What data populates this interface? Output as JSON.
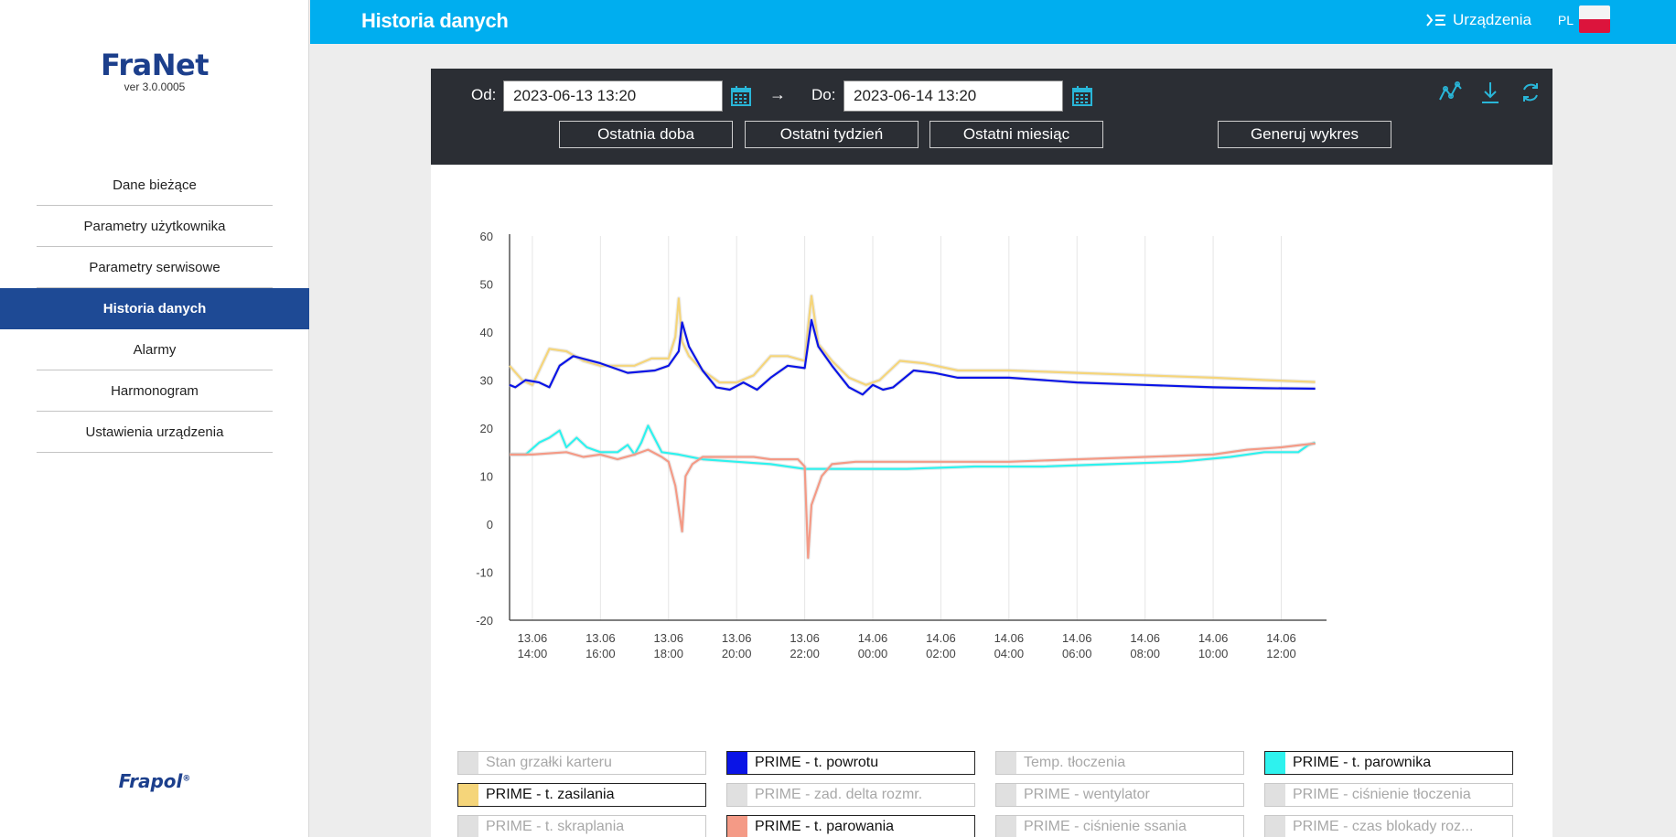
{
  "app": {
    "brand": "FraNet",
    "version": "ver 3.0.0005",
    "footer_logo": "Frapol"
  },
  "sidebar": {
    "items": [
      {
        "label": "Dane bieżące",
        "active": false
      },
      {
        "label": "Parametry użytkownika",
        "active": false
      },
      {
        "label": "Parametry serwisowe",
        "active": false
      },
      {
        "label": "Historia danych",
        "active": true
      },
      {
        "label": "Alarmy",
        "active": false
      },
      {
        "label": "Harmonogram",
        "active": false
      },
      {
        "label": "Ustawienia urządzenia",
        "active": false
      }
    ]
  },
  "header": {
    "title": "Historia danych",
    "devices_label": "Urządzenia",
    "lang": "PL"
  },
  "toolbar": {
    "from_label": "Od:",
    "from_value": "2023-06-13 13:20",
    "arrow": "→",
    "to_label": "Do:",
    "to_value": "2023-06-14 13:20",
    "btn_day": "Ostatnia doba",
    "btn_week": "Ostatni tydzień",
    "btn_month": "Ostatni miesiąc",
    "btn_generate": "Generuj wykres",
    "icons": [
      "chart-line-icon",
      "download-icon",
      "refresh-icon"
    ]
  },
  "colors": {
    "header": "#00aeef",
    "sidebar_active": "#1e4a95",
    "toolbar": "#2b2e34",
    "icon_accent": "#29b6d8"
  },
  "legend": [
    {
      "label": "Stan grzałki karteru",
      "active": false,
      "color": "#e0e0e0"
    },
    {
      "label": "PRIME - t. powrotu",
      "active": true,
      "color": "#0a14e6"
    },
    {
      "label": "Temp. tłoczenia",
      "active": false,
      "color": "#e0e0e0"
    },
    {
      "label": "PRIME - t. parownika",
      "active": true,
      "color": "#2ef2ee"
    },
    {
      "label": "PRIME - t. zasilania",
      "active": true,
      "color": "#f5d57a"
    },
    {
      "label": "PRIME - zad. delta rozmr.",
      "active": false,
      "color": "#e0e0e0"
    },
    {
      "label": "PRIME - wentylator",
      "active": false,
      "color": "#e0e0e0"
    },
    {
      "label": "PRIME - ciśnienie tłoczenia",
      "active": false,
      "color": "#e0e0e0"
    },
    {
      "label": "PRIME - t. skraplania",
      "active": false,
      "color": "#e0e0e0"
    },
    {
      "label": "PRIME - t. parowania",
      "active": true,
      "color": "#f49a86"
    },
    {
      "label": "PRIME - ciśnienie ssania",
      "active": false,
      "color": "#e0e0e0"
    },
    {
      "label": "PRIME - czas blokady roz...",
      "active": false,
      "color": "#e0e0e0"
    }
  ],
  "chart_data": {
    "type": "line",
    "ylim": [
      -20,
      60
    ],
    "yticks": [
      -20,
      -10,
      0,
      10,
      20,
      30,
      40,
      50,
      60
    ],
    "xlim": [
      13.33,
      37.33
    ],
    "xticks": [
      {
        "h": 14,
        "date": "13.06",
        "time": "14:00"
      },
      {
        "h": 16,
        "date": "13.06",
        "time": "16:00"
      },
      {
        "h": 18,
        "date": "13.06",
        "time": "18:00"
      },
      {
        "h": 20,
        "date": "13.06",
        "time": "20:00"
      },
      {
        "h": 22,
        "date": "13.06",
        "time": "22:00"
      },
      {
        "h": 24,
        "date": "14.06",
        "time": "00:00"
      },
      {
        "h": 26,
        "date": "14.06",
        "time": "02:00"
      },
      {
        "h": 28,
        "date": "14.06",
        "time": "04:00"
      },
      {
        "h": 30,
        "date": "14.06",
        "time": "06:00"
      },
      {
        "h": 32,
        "date": "14.06",
        "time": "08:00"
      },
      {
        "h": 34,
        "date": "14.06",
        "time": "10:00"
      },
      {
        "h": 36,
        "date": "14.06",
        "time": "12:00"
      }
    ],
    "grid": "vertical",
    "series": [
      {
        "name": "PRIME - t. zasilania",
        "color": "#f5d57a",
        "x": [
          13.33,
          13.7,
          14.0,
          14.5,
          15.0,
          15.5,
          16.0,
          17.0,
          17.5,
          18.0,
          18.2,
          18.3,
          18.4,
          18.6,
          19.0,
          19.5,
          20.0,
          20.5,
          21.0,
          21.5,
          22.0,
          22.1,
          22.2,
          22.4,
          22.8,
          23.3,
          23.8,
          24.2,
          24.8,
          25.5,
          26.5,
          28.0,
          30.0,
          32.0,
          34.0,
          35.5,
          37.0
        ],
        "y": [
          33,
          30,
          29,
          36.5,
          36,
          34,
          33,
          33,
          34.5,
          34.5,
          39,
          47,
          38,
          35,
          32,
          29.5,
          29.5,
          31,
          35,
          35,
          34,
          41,
          47.5,
          37.5,
          34,
          30.5,
          29,
          30,
          34,
          33.5,
          32,
          32,
          31.5,
          31,
          30.5,
          30,
          29.6
        ]
      },
      {
        "name": "PRIME - t. powrotu",
        "color": "#0a14e6",
        "x": [
          13.33,
          13.5,
          13.8,
          14.2,
          14.5,
          14.8,
          15.2,
          16.0,
          16.8,
          17.6,
          18.0,
          18.3,
          18.4,
          18.6,
          19.0,
          19.4,
          19.8,
          20.2,
          20.6,
          21.0,
          21.5,
          22.0,
          22.2,
          22.4,
          22.8,
          23.3,
          23.7,
          24.0,
          24.3,
          24.6,
          25.2,
          25.8,
          26.5,
          28.0,
          30.0,
          32.0,
          34.0,
          35.5,
          37.0
        ],
        "y": [
          29,
          28.5,
          30,
          29.5,
          28.5,
          33,
          35,
          33.5,
          31.5,
          32,
          33,
          36,
          42,
          37,
          32,
          28.5,
          28,
          29.5,
          28,
          30.5,
          33,
          32.5,
          42.5,
          37,
          33,
          28.5,
          27,
          29,
          28,
          28.5,
          32,
          31.5,
          30.5,
          30.5,
          29.5,
          29,
          28.5,
          28.3,
          28.2
        ]
      },
      {
        "name": "PRIME - t. parownika",
        "color": "#2ef2ee",
        "x": [
          13.33,
          13.8,
          14.2,
          14.5,
          14.8,
          15.0,
          15.3,
          15.6,
          16.0,
          16.5,
          16.8,
          17.0,
          17.2,
          17.4,
          17.8,
          18.3,
          19.0,
          20.0,
          21.0,
          22.0,
          23.0,
          24.0,
          25.0,
          27.0,
          29.0,
          31.0,
          33.0,
          34.5,
          35.5,
          36.5,
          36.8,
          37.0
        ],
        "y": [
          14.5,
          14.5,
          17,
          18,
          19.5,
          16,
          18,
          16,
          15,
          15,
          16.5,
          14.5,
          17,
          20.5,
          15,
          14.5,
          13.5,
          13,
          12.5,
          11.5,
          11.5,
          11.5,
          11.5,
          12,
          12,
          12.5,
          13,
          14,
          15,
          15,
          16.5,
          17
        ]
      },
      {
        "name": "PRIME - t. parowania",
        "color": "#f49a86",
        "x": [
          13.33,
          14.0,
          15.0,
          15.5,
          16.0,
          16.5,
          17.0,
          17.4,
          17.8,
          18.0,
          18.2,
          18.4,
          18.5,
          18.7,
          19.0,
          19.5,
          20.0,
          20.5,
          21.0,
          21.8,
          22.0,
          22.1,
          22.2,
          22.5,
          22.8,
          23.5,
          24.5,
          26.0,
          28.0,
          30.0,
          32.0,
          34.0,
          35.0,
          36.0,
          36.6,
          37.0
        ],
        "y": [
          14.5,
          14.5,
          15,
          14,
          14.5,
          13.5,
          14.5,
          15.5,
          14,
          13,
          8,
          -1.5,
          10,
          12.5,
          14,
          14,
          14,
          14,
          13.5,
          13.5,
          12,
          -7,
          4,
          10,
          12.5,
          13,
          13,
          13,
          13,
          13.5,
          14,
          14.5,
          15.5,
          16,
          16.5,
          16.8
        ]
      }
    ]
  }
}
